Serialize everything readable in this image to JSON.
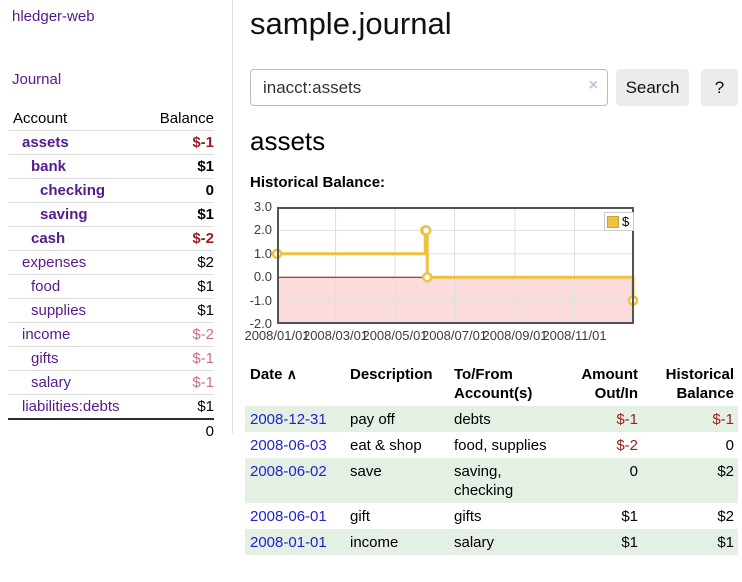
{
  "sidebar": {
    "brand": "hledger-web",
    "journal_link": "Journal",
    "accounts": {
      "header_account": "Account",
      "header_balance": "Balance",
      "rows": [
        {
          "name": "assets",
          "balance": "$-1"
        },
        {
          "name": "bank",
          "balance": "$1"
        },
        {
          "name": "checking",
          "balance": "0"
        },
        {
          "name": "saving",
          "balance": "$1"
        },
        {
          "name": "cash",
          "balance": "$-2"
        },
        {
          "name": "expenses",
          "balance": "$2"
        },
        {
          "name": "food",
          "balance": "$1"
        },
        {
          "name": "supplies",
          "balance": "$1"
        },
        {
          "name": "income",
          "balance": "$-2"
        },
        {
          "name": "gifts",
          "balance": "$-1"
        },
        {
          "name": "salary",
          "balance": "$-1"
        },
        {
          "name": "liabilities:debts",
          "balance": "$1"
        }
      ],
      "total": "0"
    }
  },
  "main": {
    "title": "sample.journal",
    "search": {
      "value": "inacct:assets",
      "clear_icon": "×",
      "search_button": "Search",
      "help_button": "?"
    },
    "register": {
      "heading": "assets",
      "chart_title": "Historical Balance:",
      "table": {
        "headers": {
          "date": "Date",
          "sort_icon": "∧",
          "description": "Description",
          "tofrom": "To/From Account(s)",
          "amount": "Amount Out/In",
          "balance": "Historical Balance"
        },
        "rows": [
          {
            "date": "2008-12-31",
            "description": "pay off",
            "accounts": "debts",
            "amount": "$-1",
            "balance": "$-1"
          },
          {
            "date": "2008-06-03",
            "description": "eat & shop",
            "accounts": "food, supplies",
            "amount": "$-2",
            "balance": "0"
          },
          {
            "date": "2008-06-02",
            "description": "save",
            "accounts": "saving,\nchecking",
            "amount": "0",
            "balance": "$2"
          },
          {
            "date": "2008-06-01",
            "description": "gift",
            "accounts": "gifts",
            "amount": "$1",
            "balance": "$2"
          },
          {
            "date": "2008-01-01",
            "description": "income",
            "accounts": "salary",
            "amount": "$1",
            "balance": "$1"
          }
        ]
      }
    }
  },
  "chart_data": {
    "type": "line",
    "step": true,
    "title": "Historical Balance",
    "legend": "$",
    "legend_position": "top-right",
    "series": [
      {
        "name": "$",
        "color": "#edc240",
        "points": [
          [
            "2008/01/01",
            1
          ],
          [
            "2008/06/01",
            2
          ],
          [
            "2008/06/02",
            2
          ],
          [
            "2008/06/03",
            0
          ],
          [
            "2008/12/31",
            -1
          ]
        ]
      }
    ],
    "x_range": [
      "2008/01/01",
      "2009/01/01"
    ],
    "x_ticks": [
      "2008/01/01",
      "2008/03/01",
      "2008/05/01",
      "2008/07/01",
      "2008/09/01",
      "2008/11/01"
    ],
    "y_ticks": [
      3.0,
      2.0,
      1.0,
      0.0,
      -1.0,
      -2.0
    ],
    "ylim": [
      -2,
      3
    ],
    "grid": true,
    "negative_fill": "#fbdbdb",
    "zero_line_color": "#8c0d0d",
    "frame_color": "#545454"
  },
  "colors": {
    "purple_link": "#551a8b",
    "blue_link": "#1313cf",
    "date_link": "#2222cc",
    "negative_strong": "#9d1c1c",
    "negative_soft": "#c4737f",
    "row_highlight": "#e3f0e3",
    "button_bg": "#ececec"
  }
}
